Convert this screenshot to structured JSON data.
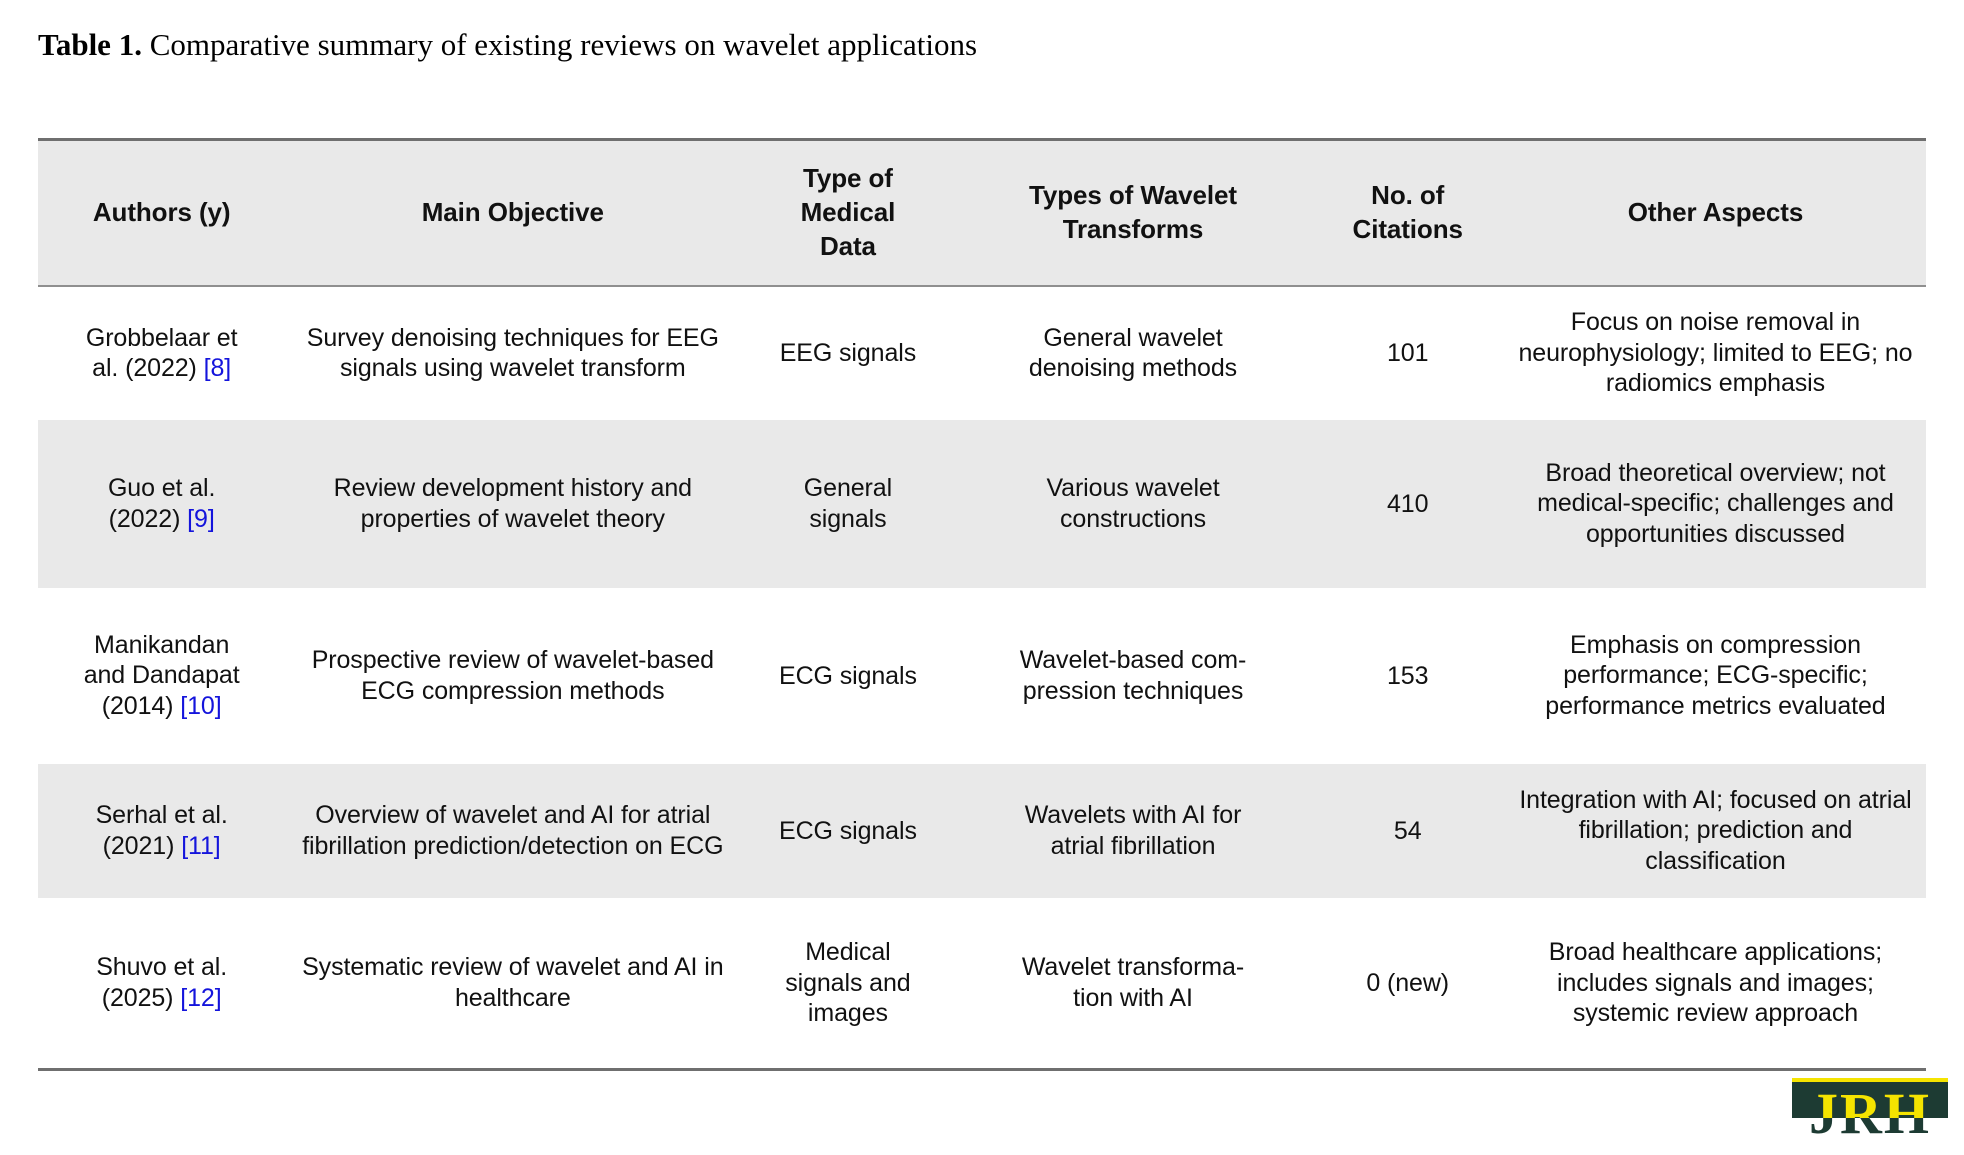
{
  "caption": {
    "label": "Table 1.",
    "text": " Comparative summary of existing reviews on wavelet applications"
  },
  "table": {
    "columns": [
      "Authors (y)",
      "Main Objective",
      "Type of Medical Data",
      "Types of Wavelet Transforms",
      "No. of Citations",
      "Other Aspects"
    ],
    "rows": [
      {
        "authors": "Grobbelaar et al. (2022)",
        "ref": "[8]",
        "objective": "Survey denoising techniques for EEG signals using wavelet transform",
        "medical_data": "EEG signals",
        "transforms": "General wavelet denoising methods",
        "citations": "101",
        "other": "Focus on noise removal in neurophysiology; limited to EEG; no radiomics emphasis"
      },
      {
        "authors": "Guo et al. (2022)",
        "ref": "[9]",
        "objective": "Review development history and properties of wavelet theory",
        "medical_data": "General signals",
        "transforms": "Various wavelet constructions",
        "citations": "410",
        "other": "Broad theoretical overview; not medical-specific; chal­lenges and opportunities discussed"
      },
      {
        "authors": "Manikandan and Dandapat (2014)",
        "ref": "[10]",
        "objective": "Prospective review of wavelet-based ECG compres­sion methods",
        "medical_data": "ECG signals",
        "transforms": "Wavelet-based com­pression techniques",
        "citations": "153",
        "other": "Emphasis on compression performance; ECG-specific; performance metrics evalu­ated"
      },
      {
        "authors": "Serhal et al. (2021)",
        "ref": "[11]",
        "objective": "Overview of wavelet and AI for atrial fibrillation predic­tion/detection on ECG",
        "medical_data": "ECG signals",
        "transforms": "Wavelets with AI for atrial fibrillation",
        "citations": "54",
        "other": "Integration with AI; focused on atrial fibrillation; predic­tion and classification"
      },
      {
        "authors": "Shuvo et al. (2025)",
        "ref": "[12]",
        "objective": "Systematic review of wavelet and AI in healthcare",
        "medical_data": "Medical signals and images",
        "transforms": "Wavelet transforma­tion with AI",
        "citations": "0 (new)",
        "other": "Broad healthcare applica­tions; includes signals and images; systemic review approach"
      }
    ]
  },
  "logo": {
    "text": "JRH"
  },
  "colors": {
    "accent_blue": "#1414dc",
    "row_shade": "#e9e9e9",
    "border_gray": "#6f6f6f",
    "logo_yellow": "#f5e400",
    "logo_dark": "#1d3b33"
  }
}
